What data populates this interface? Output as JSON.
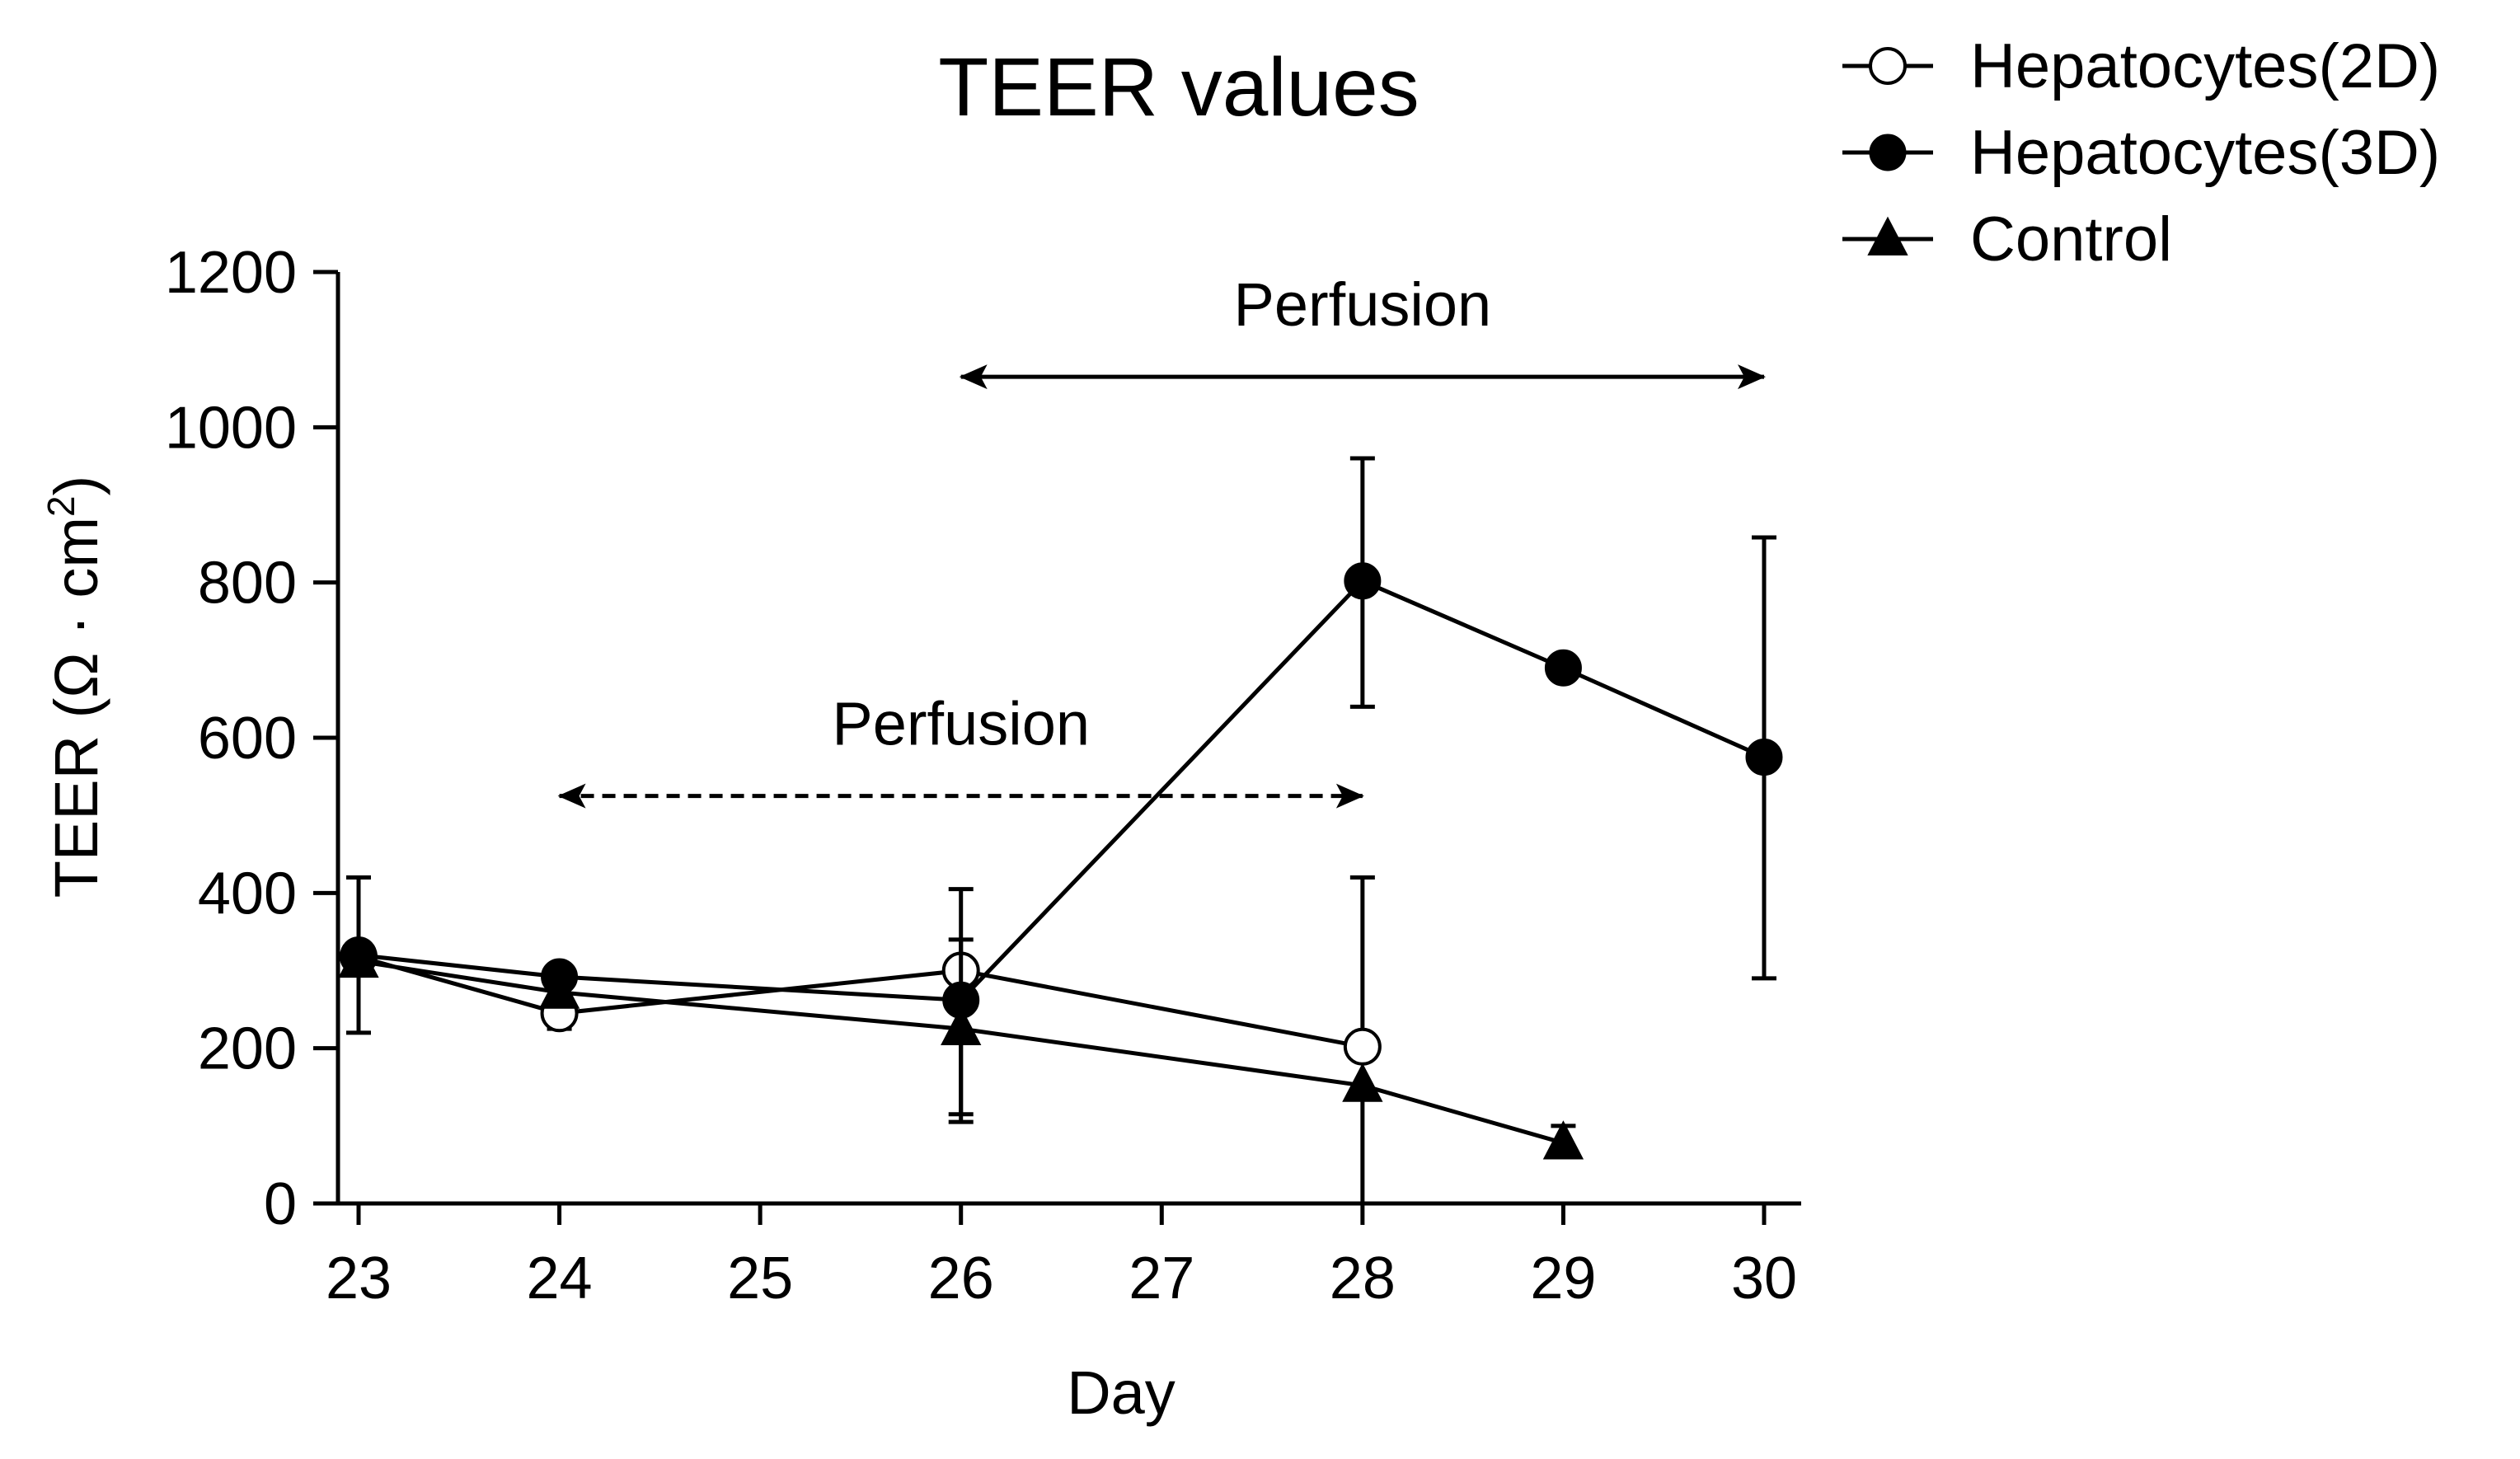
{
  "chart_data": {
    "type": "line",
    "title": "TEER values",
    "xlabel": "Day",
    "ylabel": "TEER (Ω · cm²)",
    "ylabel_parts": {
      "main": "TEER (Ω · cm",
      "sup": "2",
      "close": ")"
    },
    "xlim": [
      23,
      30
    ],
    "ylim": [
      0,
      1200
    ],
    "x_ticks": [
      23,
      24,
      25,
      26,
      27,
      28,
      29,
      30
    ],
    "y_ticks": [
      0,
      200,
      400,
      600,
      800,
      1000,
      1200
    ],
    "grid": false,
    "legend_position": "top-right",
    "series": [
      {
        "name": "Hepatocytes(2D)",
        "marker": "open-circle",
        "x": [
          23,
          24,
          26,
          28
        ],
        "y": [
          318,
          245,
          300,
          202
        ],
        "err_low": [
          318,
          225,
          105,
          202
        ],
        "err_high": [
          318,
          265,
          340,
          420
        ]
      },
      {
        "name": "Hepatocytes(3D)",
        "marker": "filled-circle",
        "x": [
          23,
          24,
          26,
          28,
          29,
          30
        ],
        "y": [
          320,
          292,
          262,
          802,
          690,
          575
        ],
        "err_low": [
          220,
          292,
          262,
          640,
          690,
          290
        ],
        "err_high": [
          420,
          292,
          262,
          960,
          690,
          858
        ]
      },
      {
        "name": "Control",
        "marker": "filled-triangle",
        "x": [
          23,
          24,
          26,
          28,
          29
        ],
        "y": [
          312,
          272,
          225,
          152,
          78
        ],
        "err_low": [
          312,
          272,
          115,
          0,
          70
        ],
        "err_high": [
          312,
          272,
          405,
          152,
          100
        ]
      }
    ],
    "annotations": [
      {
        "text": "Perfusion",
        "from_x": 24,
        "to_x": 28,
        "y": 525,
        "style": "dashed",
        "double_headed": true
      },
      {
        "text": "Perfusion",
        "from_x": 26,
        "to_x": 30,
        "y": 1065,
        "style": "solid",
        "double_headed": true
      }
    ]
  }
}
